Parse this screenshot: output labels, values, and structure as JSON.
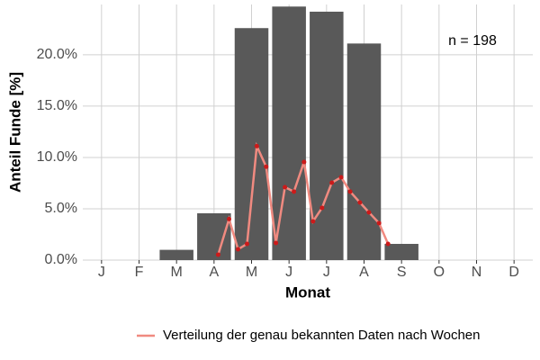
{
  "chart_data": {
    "type": "bar",
    "x_label": "Monat",
    "y_label": "Anteil Funde [%]",
    "annotation": "n = 198",
    "categories": [
      "J",
      "F",
      "M",
      "A",
      "M",
      "J",
      "J",
      "A",
      "S",
      "O",
      "N",
      "D"
    ],
    "values": [
      0,
      0,
      1.0,
      4.56,
      22.6,
      24.7,
      24.2,
      21.1,
      1.58,
      0,
      0,
      0
    ],
    "color": "#595959",
    "xlim": [
      0.5,
      12.5
    ],
    "ylim": [
      0,
      24.9
    ],
    "yticks": [
      {
        "value": 0,
        "label": "0.0%"
      },
      {
        "value": 5,
        "label": "5.0%"
      },
      {
        "value": 10,
        "label": "10.0%"
      },
      {
        "value": 15,
        "label": "15.0%"
      },
      {
        "value": 20,
        "label": "20.0%"
      }
    ],
    "grid": true,
    "legend": "bottom",
    "line": {
      "type": "line",
      "name": "Verteilung der genau bekannten Daten nach Wochen",
      "color": "#f08a80",
      "point_color": "#cc1a1a",
      "x": [
        4.11,
        4.4,
        4.64,
        4.88,
        5.14,
        5.39,
        5.65,
        5.89,
        6.13,
        6.4,
        6.64,
        6.88,
        7.14,
        7.39,
        7.63,
        7.89,
        8.13,
        8.4,
        8.64
      ],
      "values": [
        0.53,
        4.0,
        1.05,
        1.58,
        11.1,
        9.1,
        1.67,
        7.1,
        6.67,
        9.56,
        3.77,
        5.09,
        7.54,
        8.07,
        6.67,
        5.61,
        4.65,
        3.6,
        1.58
      ]
    }
  }
}
